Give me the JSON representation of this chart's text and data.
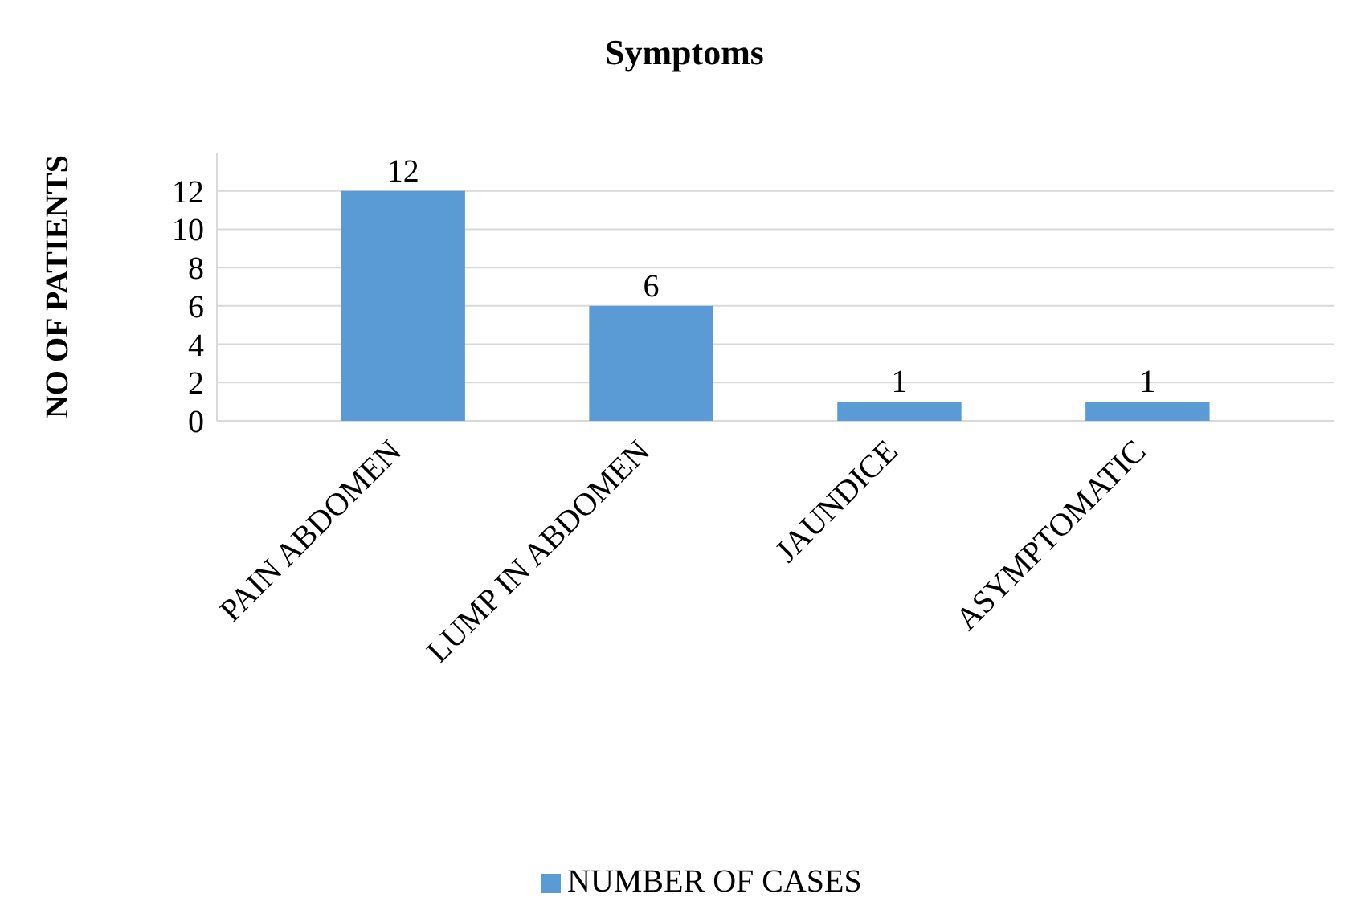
{
  "chart_data": {
    "type": "bar",
    "title": "Symptoms",
    "ylabel": "NO OF PATIENTS",
    "categories": [
      "PAIN ABDOMEN",
      "LUMP IN ABDOMEN",
      "JAUNDICE",
      "ASYMPTOMATIC"
    ],
    "series": [
      {
        "name": "NUMBER OF CASES",
        "color": "#5b9bd5",
        "values": [
          12,
          6,
          1,
          1
        ]
      }
    ],
    "ylim": [
      0,
      14
    ],
    "yticks": [
      0,
      2,
      4,
      6,
      8,
      10,
      12
    ],
    "grid": "y",
    "legend": "bottom",
    "data_labels": true
  }
}
